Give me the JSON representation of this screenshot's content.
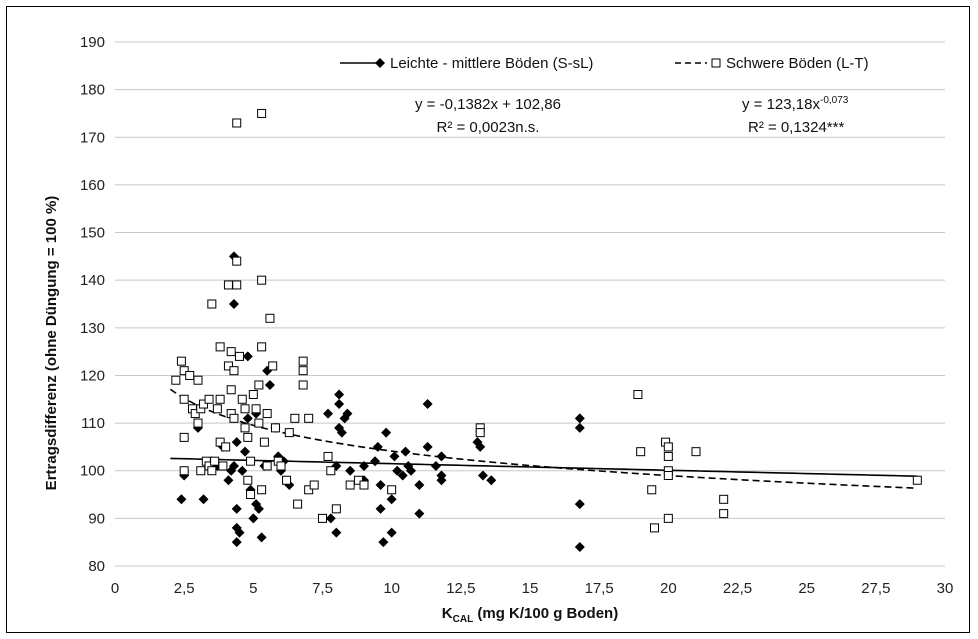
{
  "chart_data": {
    "type": "scatter",
    "xlabel_main": "K",
    "xlabel_sub": "CAL",
    "xlabel_rest": " (mg K/100 g Boden)",
    "ylabel": "Ertragsdifferenz (ohne Düngung = 100 %)",
    "xlim": [
      0,
      30
    ],
    "ylim": [
      80,
      190
    ],
    "x_ticks": [
      0,
      2.5,
      5,
      7.5,
      10,
      12.5,
      15,
      17.5,
      20,
      22.5,
      25,
      27.5,
      30
    ],
    "x_tick_labels": [
      "0",
      "2,5",
      "5",
      "7,5",
      "10",
      "12,5",
      "15",
      "17,5",
      "20",
      "22,5",
      "25",
      "27,5",
      "30"
    ],
    "y_ticks": [
      80,
      90,
      100,
      110,
      120,
      130,
      140,
      150,
      160,
      170,
      180,
      190
    ],
    "y_tick_labels": [
      "80",
      "90",
      "100",
      "110",
      "120",
      "130",
      "140",
      "150",
      "160",
      "170",
      "180",
      "190"
    ],
    "grid": "horizontal",
    "legend_position": "top",
    "series": [
      {
        "name": "Leichte - mittlere Böden (S-sL)",
        "marker": "filled-diamond",
        "color": "#000000",
        "line_style": "solid",
        "equation_line1": "y = -0,1382x + 102,86",
        "equation_line2": "R² = 0,0023n.s.",
        "trend": {
          "type": "linear",
          "slope": -0.1382,
          "intercept": 102.86,
          "x_from": 2,
          "x_to": 29
        },
        "points": [
          [
            2.4,
            94
          ],
          [
            2.5,
            99
          ],
          [
            3.0,
            109
          ],
          [
            3.2,
            94
          ],
          [
            3.5,
            102
          ],
          [
            3.7,
            101
          ],
          [
            3.9,
            105
          ],
          [
            4.1,
            98
          ],
          [
            4.2,
            100
          ],
          [
            4.3,
            101
          ],
          [
            4.3,
            145
          ],
          [
            4.3,
            135
          ],
          [
            4.4,
            106
          ],
          [
            4.4,
            92
          ],
          [
            4.4,
            88
          ],
          [
            4.4,
            85
          ],
          [
            4.5,
            87
          ],
          [
            4.6,
            100
          ],
          [
            4.7,
            104
          ],
          [
            4.8,
            124
          ],
          [
            4.8,
            111
          ],
          [
            4.9,
            96
          ],
          [
            5.0,
            90
          ],
          [
            5.1,
            93
          ],
          [
            5.1,
            112
          ],
          [
            5.2,
            92
          ],
          [
            5.3,
            86
          ],
          [
            5.4,
            101
          ],
          [
            5.5,
            121
          ],
          [
            5.6,
            118
          ],
          [
            5.8,
            109
          ],
          [
            5.9,
            103
          ],
          [
            6.0,
            100
          ],
          [
            6.1,
            102
          ],
          [
            6.3,
            97
          ],
          [
            7.7,
            112
          ],
          [
            7.8,
            90
          ],
          [
            8.0,
            101
          ],
          [
            8.0,
            87
          ],
          [
            8.1,
            116
          ],
          [
            8.1,
            114
          ],
          [
            8.1,
            109
          ],
          [
            8.2,
            108
          ],
          [
            8.3,
            111
          ],
          [
            8.4,
            112
          ],
          [
            8.5,
            100
          ],
          [
            9.0,
            101
          ],
          [
            9.0,
            98
          ],
          [
            9.4,
            102
          ],
          [
            9.5,
            105
          ],
          [
            9.6,
            97
          ],
          [
            9.6,
            92
          ],
          [
            9.7,
            85
          ],
          [
            9.8,
            108
          ],
          [
            10.0,
            87
          ],
          [
            10.0,
            94
          ],
          [
            10.1,
            103
          ],
          [
            10.2,
            100
          ],
          [
            10.4,
            99
          ],
          [
            10.5,
            104
          ],
          [
            10.6,
            101
          ],
          [
            10.7,
            100
          ],
          [
            11.0,
            91
          ],
          [
            11.0,
            97
          ],
          [
            11.3,
            114
          ],
          [
            11.3,
            105
          ],
          [
            11.6,
            101
          ],
          [
            11.8,
            103
          ],
          [
            11.8,
            99
          ],
          [
            11.8,
            98
          ],
          [
            13.1,
            106
          ],
          [
            13.2,
            105
          ],
          [
            13.3,
            99
          ],
          [
            13.6,
            98
          ],
          [
            16.8,
            111
          ],
          [
            16.8,
            109
          ],
          [
            16.8,
            93
          ],
          [
            16.8,
            84
          ]
        ]
      },
      {
        "name": "Schwere Böden (L-T)",
        "marker": "open-square",
        "color": "#000000",
        "line_style": "dashed",
        "equation_line1_base": "y = 123,18x",
        "equation_line1_exp": "-0,073",
        "equation_line2": "R² = 0,1324***",
        "trend": {
          "type": "power",
          "a": 123.18,
          "b": -0.073,
          "x_from": 2,
          "x_to": 29
        },
        "points": [
          [
            2.2,
            119
          ],
          [
            2.4,
            123
          ],
          [
            2.5,
            121
          ],
          [
            2.5,
            115
          ],
          [
            2.5,
            107
          ],
          [
            2.5,
            100
          ],
          [
            2.7,
            120
          ],
          [
            2.8,
            113
          ],
          [
            2.9,
            112
          ],
          [
            3.0,
            119
          ],
          [
            3.0,
            110
          ],
          [
            3.1,
            113
          ],
          [
            3.1,
            100
          ],
          [
            3.2,
            114
          ],
          [
            3.3,
            102
          ],
          [
            3.4,
            101
          ],
          [
            3.4,
            115
          ],
          [
            3.5,
            135
          ],
          [
            3.5,
            100
          ],
          [
            3.6,
            102
          ],
          [
            3.7,
            113
          ],
          [
            3.8,
            126
          ],
          [
            3.8,
            115
          ],
          [
            3.8,
            106
          ],
          [
            3.9,
            101
          ],
          [
            4.0,
            105
          ],
          [
            4.1,
            139
          ],
          [
            4.1,
            122
          ],
          [
            4.2,
            125
          ],
          [
            4.2,
            117
          ],
          [
            4.2,
            112
          ],
          [
            4.3,
            121
          ],
          [
            4.3,
            111
          ],
          [
            4.4,
            173
          ],
          [
            4.4,
            144
          ],
          [
            4.4,
            139
          ],
          [
            4.5,
            124
          ],
          [
            4.6,
            115
          ],
          [
            4.7,
            113
          ],
          [
            4.7,
            109
          ],
          [
            4.8,
            107
          ],
          [
            4.8,
            98
          ],
          [
            4.9,
            95
          ],
          [
            4.9,
            102
          ],
          [
            5.0,
            116
          ],
          [
            5.1,
            113
          ],
          [
            5.2,
            118
          ],
          [
            5.2,
            110
          ],
          [
            5.3,
            175
          ],
          [
            5.3,
            140
          ],
          [
            5.3,
            126
          ],
          [
            5.3,
            96
          ],
          [
            5.4,
            106
          ],
          [
            5.5,
            112
          ],
          [
            5.5,
            101
          ],
          [
            5.6,
            132
          ],
          [
            5.7,
            122
          ],
          [
            5.8,
            109
          ],
          [
            5.9,
            102
          ],
          [
            6.0,
            101
          ],
          [
            6.2,
            98
          ],
          [
            6.3,
            108
          ],
          [
            6.5,
            111
          ],
          [
            6.6,
            93
          ],
          [
            6.8,
            123
          ],
          [
            6.8,
            121
          ],
          [
            6.8,
            118
          ],
          [
            7.0,
            111
          ],
          [
            7.0,
            96
          ],
          [
            7.2,
            97
          ],
          [
            7.5,
            90
          ],
          [
            7.7,
            103
          ],
          [
            7.8,
            100
          ],
          [
            8.0,
            92
          ],
          [
            8.5,
            97
          ],
          [
            8.8,
            98
          ],
          [
            9.0,
            97
          ],
          [
            10.0,
            96
          ],
          [
            13.2,
            109
          ],
          [
            13.2,
            108
          ],
          [
            18.9,
            116
          ],
          [
            19.0,
            104
          ],
          [
            19.4,
            96
          ],
          [
            19.5,
            88
          ],
          [
            19.9,
            106
          ],
          [
            20.0,
            105
          ],
          [
            20.0,
            103
          ],
          [
            20.0,
            100
          ],
          [
            20.0,
            99
          ],
          [
            20.0,
            90
          ],
          [
            21.0,
            104
          ],
          [
            22.0,
            94
          ],
          [
            22.0,
            91
          ],
          [
            29.0,
            98
          ]
        ]
      }
    ]
  }
}
